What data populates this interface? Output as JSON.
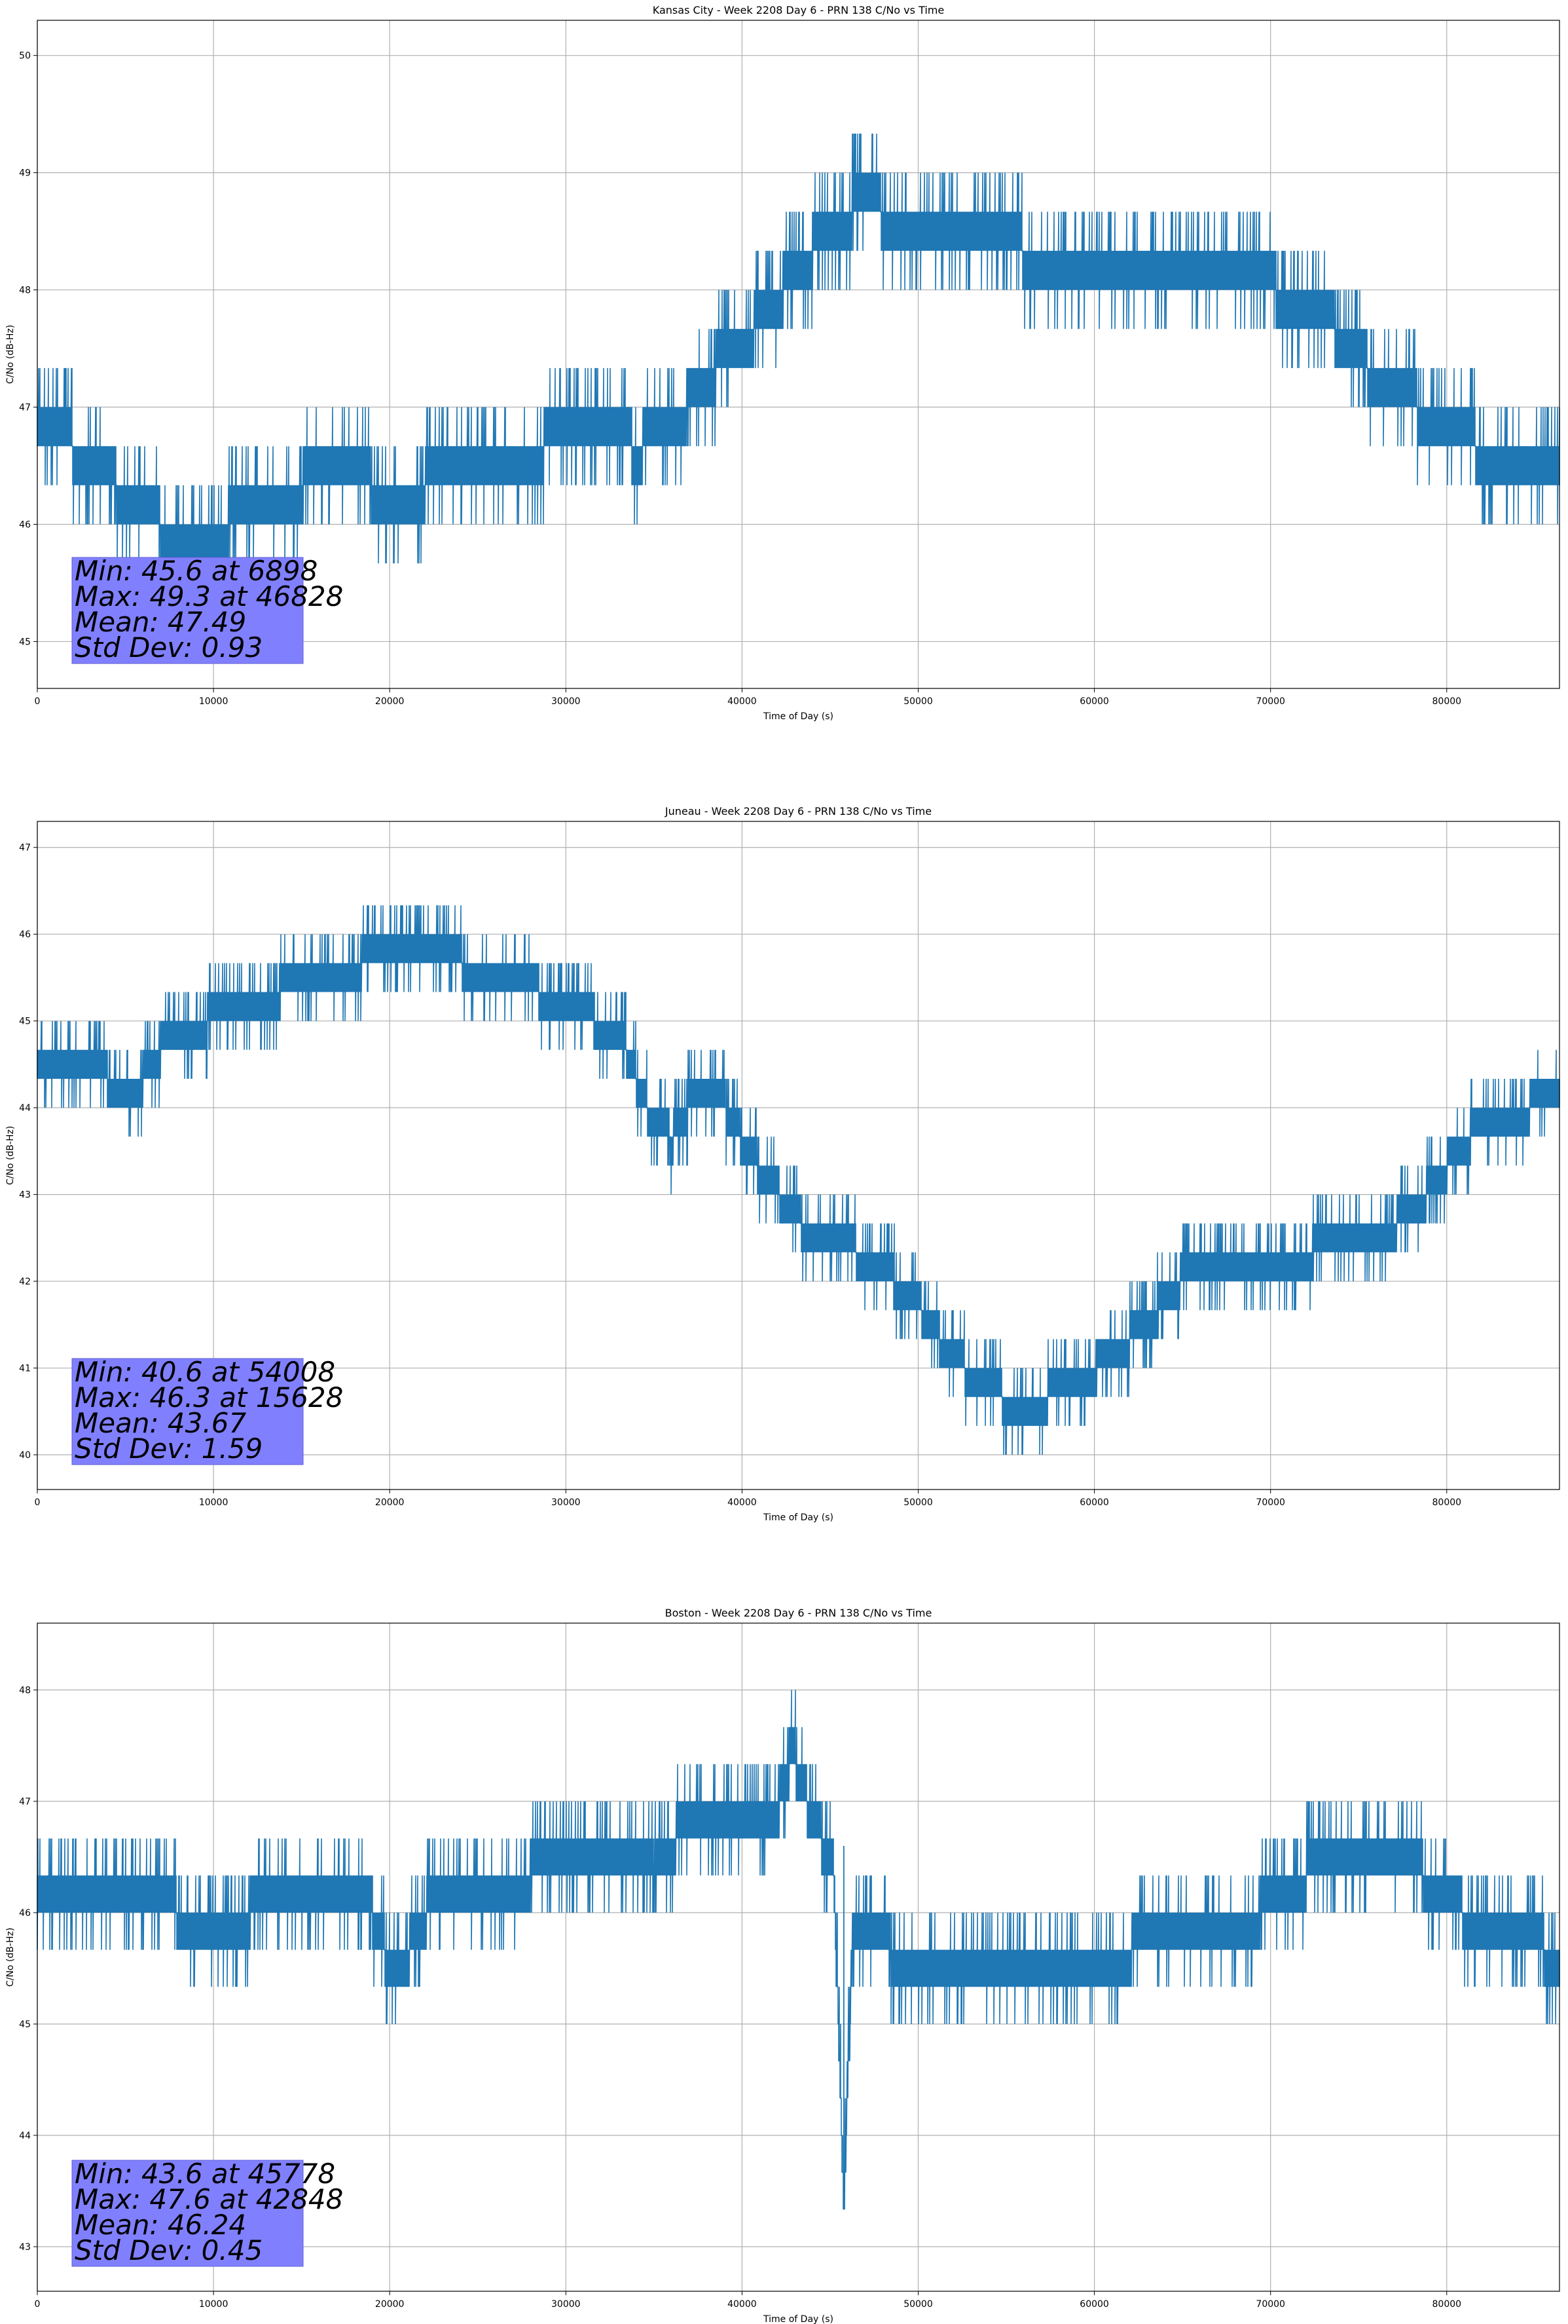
{
  "colors": {
    "series": "#1f77b4",
    "grid": "#b0b0b0",
    "statbox": "#8080ff"
  },
  "chart_data": [
    {
      "type": "line",
      "title": "Kansas City - Week 2208 Day 6 - PRN 138 C/No vs Time",
      "xlabel": "Time of Day (s)",
      "ylabel": "C/No (dB-Hz)",
      "xlim": [
        0,
        86400
      ],
      "ylim": [
        44.6,
        50.3
      ],
      "xticks": [
        0,
        10000,
        20000,
        30000,
        40000,
        50000,
        60000,
        70000,
        80000
      ],
      "yticks": [
        45,
        46,
        47,
        48,
        49,
        50
      ],
      "grid": true,
      "series": [
        {
          "x": [
            0,
            1500,
            3000,
            4500,
            6000,
            7500,
            8500,
            9800,
            11000,
            13000,
            15000,
            17000,
            19000,
            20500,
            22000,
            24000,
            26000,
            28000,
            30000,
            31500,
            32500,
            34000,
            36000,
            37500,
            39000,
            40500,
            42000,
            43500,
            45000,
            46800,
            48500,
            50500,
            53000,
            56000,
            59000,
            62000,
            65000,
            67500,
            70000,
            72000,
            74000,
            76000,
            78000,
            80000,
            82000,
            84000,
            86400
          ],
          "y": [
            47.1,
            46.9,
            46.7,
            46.5,
            46.3,
            46.1,
            45.9,
            46.0,
            46.2,
            46.3,
            46.5,
            46.6,
            46.5,
            46.3,
            46.5,
            46.8,
            46.8,
            46.8,
            46.9,
            47.1,
            47.0,
            46.8,
            47.0,
            47.3,
            47.6,
            47.8,
            48.1,
            48.4,
            48.7,
            48.9,
            48.8,
            48.7,
            48.6,
            48.5,
            48.4,
            48.4,
            48.4,
            48.3,
            48.2,
            48.0,
            47.8,
            47.4,
            47.2,
            47.0,
            46.8,
            46.8,
            46.8
          ]
        }
      ],
      "stats": [
        "Min: 45.6 at 6898",
        "Max: 49.3 at 46828",
        "Mean: 47.49",
        "Std Dev: 0.93"
      ]
    },
    {
      "type": "line",
      "title": "Juneau - Week 2208 Day 6 - PRN 138 C/No vs Time",
      "xlabel": "Time of Day (s)",
      "ylabel": "C/No (dB-Hz)",
      "xlim": [
        0,
        86400
      ],
      "ylim": [
        39.6,
        47.3
      ],
      "xticks": [
        0,
        10000,
        20000,
        30000,
        40000,
        50000,
        60000,
        70000,
        80000
      ],
      "yticks": [
        40,
        41,
        42,
        43,
        44,
        45,
        46,
        47
      ],
      "grid": true,
      "series": [
        {
          "x": [
            0,
            2500,
            4500,
            6000,
            7500,
            10000,
            12500,
            15000,
            17500,
            20000,
            22500,
            25000,
            27500,
            29000,
            31000,
            33000,
            34500,
            36000,
            37500,
            39000,
            40500,
            42000,
            43500,
            45000,
            46500,
            48500,
            50000,
            51500,
            53000,
            55000,
            57000,
            59000,
            61000,
            63000,
            65000,
            67000,
            69000,
            71000,
            73000,
            75000,
            77000,
            79000,
            81000,
            83000,
            85000,
            86400
          ],
          "y": [
            44.8,
            44.8,
            44.4,
            44.5,
            45.0,
            45.2,
            45.4,
            45.6,
            45.8,
            45.9,
            45.9,
            45.8,
            45.7,
            45.4,
            45.2,
            45.1,
            44.2,
            43.8,
            44.4,
            44.2,
            43.6,
            43.2,
            42.8,
            42.8,
            42.5,
            42.2,
            41.9,
            41.4,
            41.1,
            40.8,
            40.8,
            41.0,
            41.3,
            41.7,
            42.2,
            42.4,
            42.4,
            42.3,
            42.6,
            42.6,
            42.8,
            43.2,
            43.8,
            44.0,
            44.2,
            44.4
          ]
        }
      ],
      "stats": [
        "Min: 40.6 at 54008",
        "Max: 46.3 at 15628",
        "Mean: 43.67",
        "Std Dev: 1.59"
      ]
    },
    {
      "type": "line",
      "title": "Boston - Week 2208 Day 6 - PRN 138 C/No vs Time",
      "xlabel": "Time of Day (s)",
      "ylabel": "C/No (dB-Hz)",
      "xlim": [
        0,
        86400
      ],
      "ylim": [
        42.6,
        48.6
      ],
      "xticks": [
        0,
        10000,
        20000,
        30000,
        40000,
        50000,
        60000,
        70000,
        80000
      ],
      "yticks": [
        43,
        44,
        45,
        46,
        47,
        48
      ],
      "grid": true,
      "series": [
        {
          "x": [
            0,
            2500,
            4500,
            7000,
            10000,
            13000,
            16000,
            19000,
            19800,
            21000,
            22500,
            25000,
            27500,
            29000,
            31000,
            33000,
            35000,
            36500,
            38000,
            40000,
            42000,
            42848,
            44000,
            45200,
            45778,
            46300,
            48000,
            50000,
            52000,
            55000,
            58000,
            61000,
            64000,
            66000,
            68000,
            70000,
            72000,
            74000,
            76000,
            78000,
            80000,
            82000,
            84000,
            86400
          ],
          "y": [
            46.5,
            46.5,
            46.3,
            46.2,
            46.1,
            46.2,
            46.2,
            46.2,
            45.8,
            45.8,
            46.3,
            46.5,
            46.4,
            46.7,
            46.8,
            46.6,
            46.5,
            46.9,
            47.0,
            47.1,
            47.1,
            47.6,
            47.0,
            46.6,
            43.6,
            46.1,
            45.9,
            45.6,
            45.6,
            45.7,
            45.8,
            45.8,
            45.9,
            46.0,
            46.1,
            46.2,
            46.5,
            46.7,
            46.8,
            46.6,
            46.3,
            46.0,
            45.9,
            45.8
          ]
        }
      ],
      "stats": [
        "Min: 43.6 at 45778",
        "Max: 47.6 at 42848",
        "Mean: 46.24",
        "Std Dev: 0.45"
      ]
    }
  ]
}
